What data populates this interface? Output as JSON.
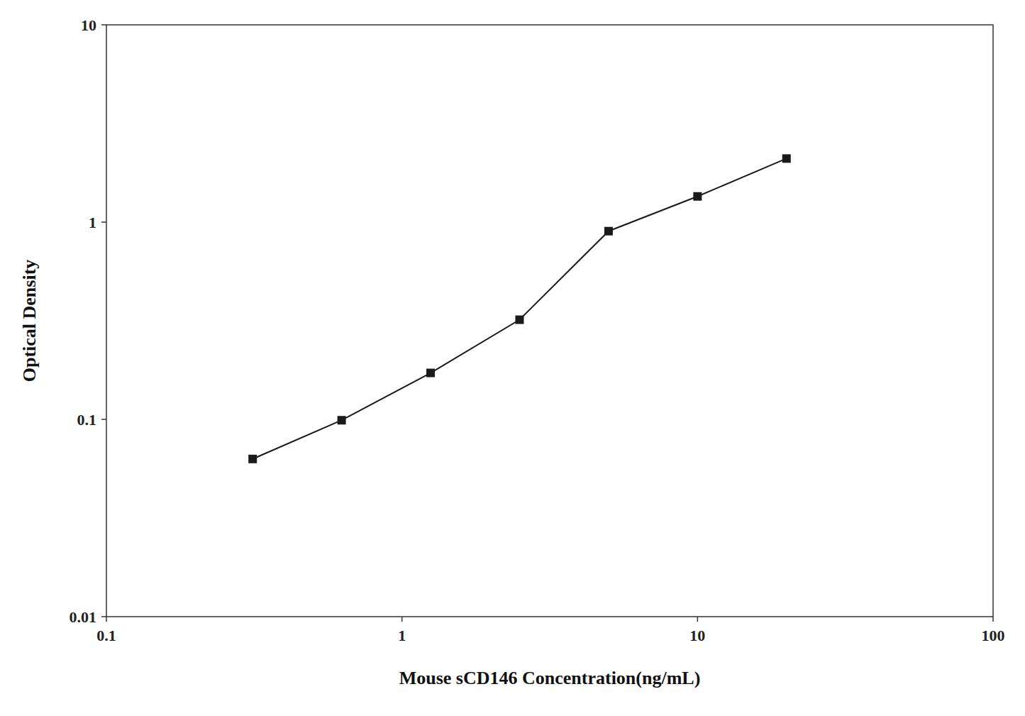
{
  "chart_data": {
    "type": "line",
    "xlabel": "Mouse sCD146 Concentration(ng/mL)",
    "ylabel": "Optical Density",
    "x": [
      0.3125,
      0.625,
      1.25,
      2.5,
      5.0,
      10.0,
      20.0
    ],
    "values": [
      0.063,
      0.099,
      0.172,
      0.32,
      0.9,
      1.35,
      2.1
    ],
    "color": "#1a1a1a",
    "marker": "square",
    "xlim": [
      0.1,
      100
    ],
    "ylim": [
      0.01,
      10
    ],
    "xticks": [
      0.1,
      1,
      10,
      100
    ],
    "yticks": [
      0.01,
      0.1,
      1,
      10
    ],
    "log": true,
    "grid": false
  }
}
